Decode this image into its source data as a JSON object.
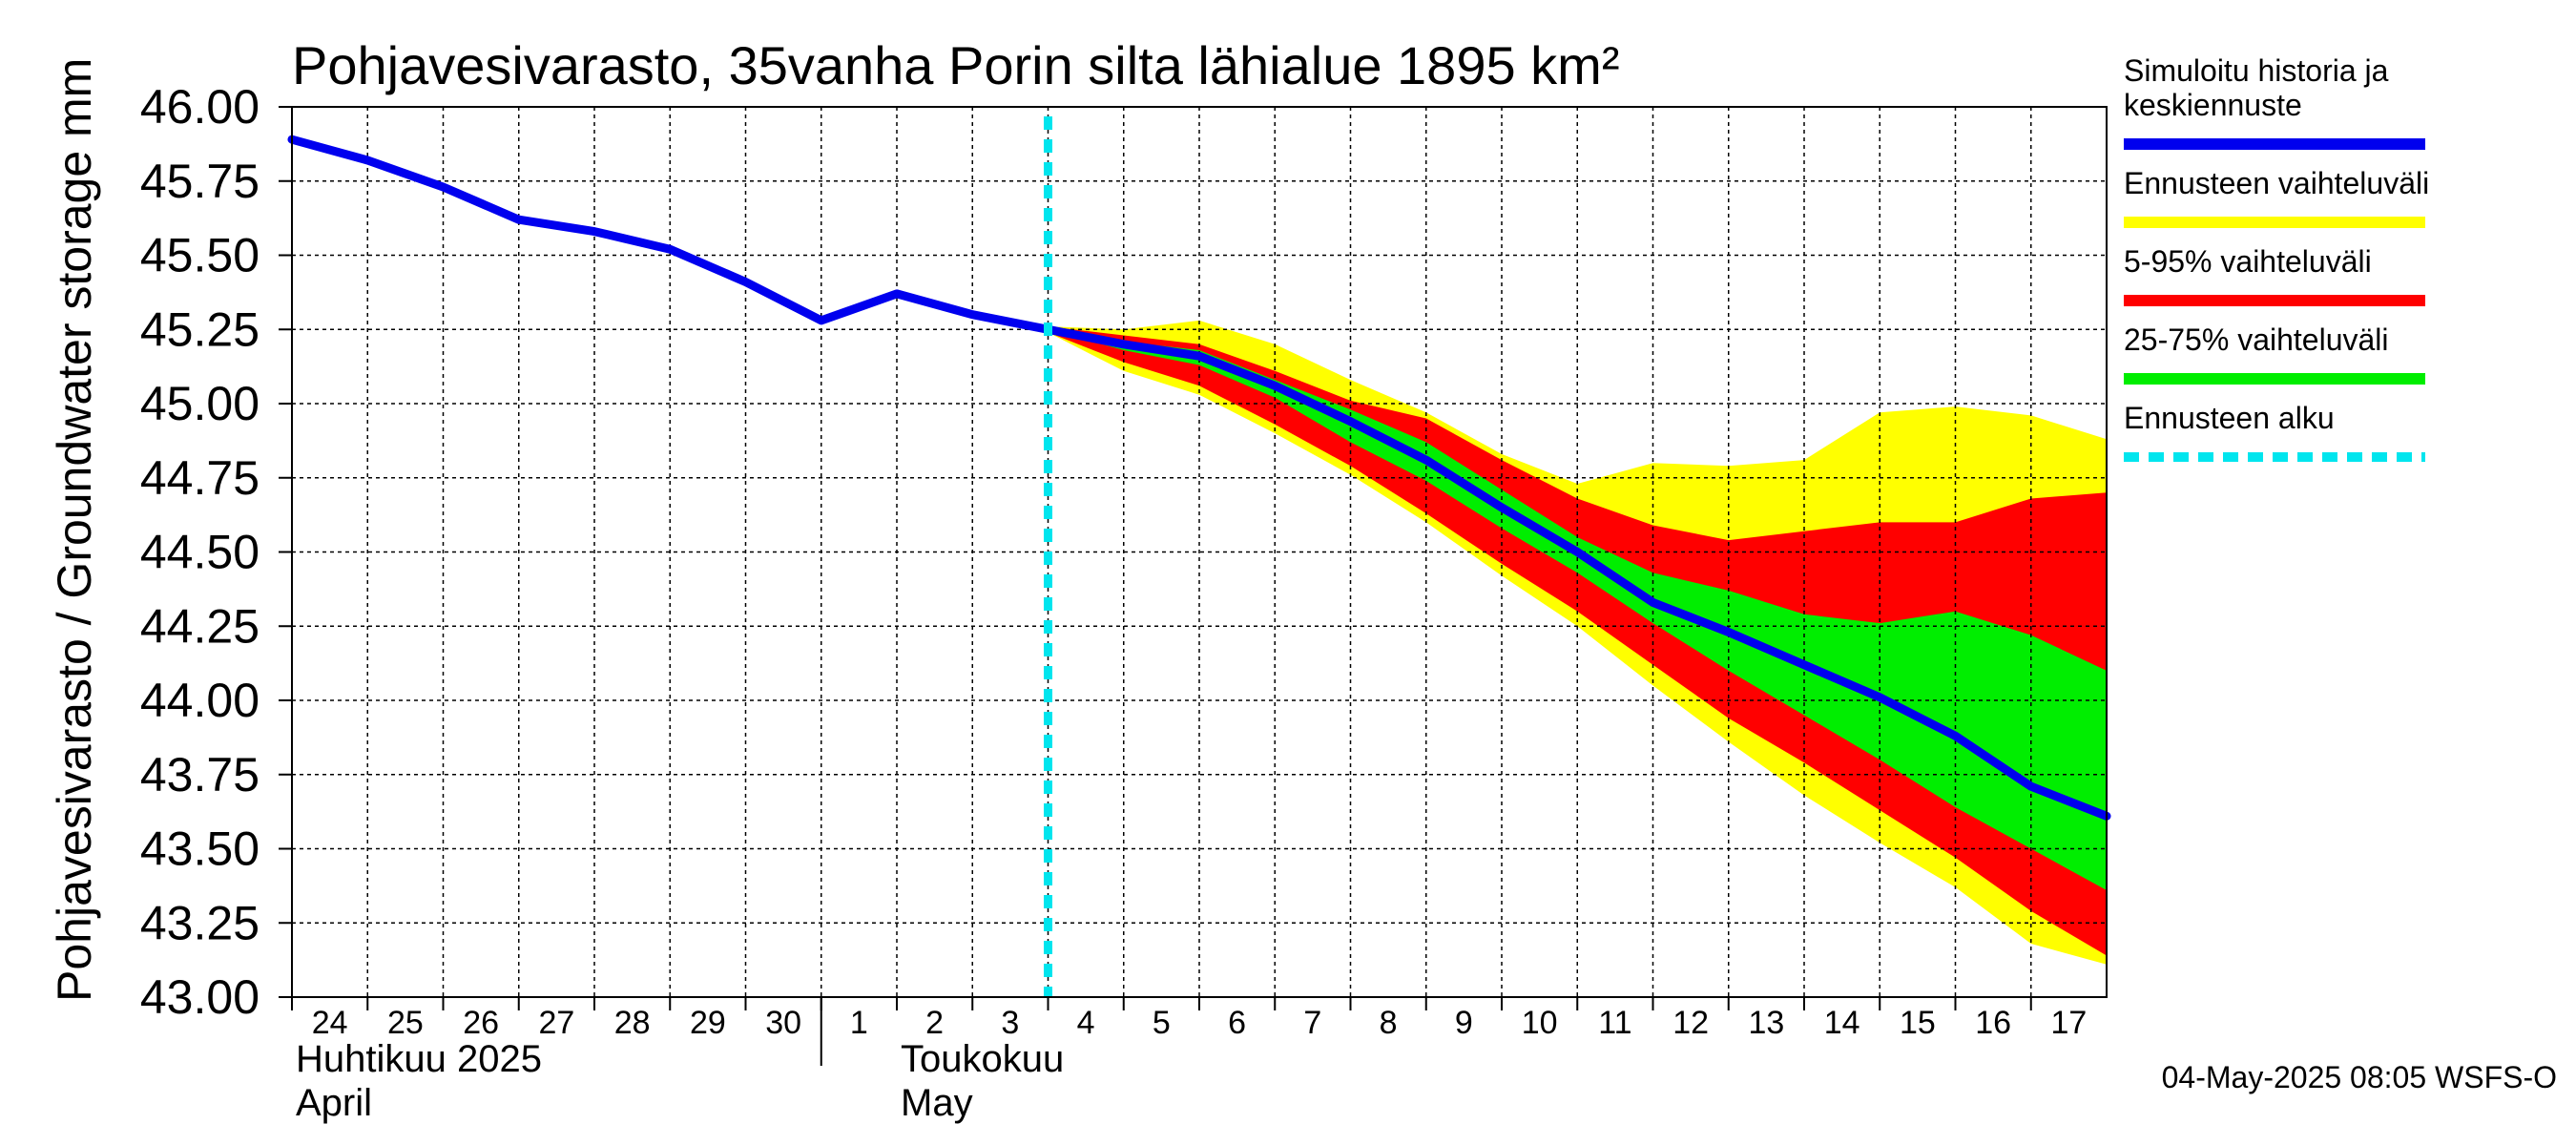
{
  "chart_data": {
    "type": "area",
    "title": "Pohjavesivarasto, 35vanha Porin silta lähialue 1895 km²",
    "ylabel": "Pohjavesivarasto / Groundwater storage   mm",
    "ylim": [
      43.0,
      46.0
    ],
    "y_ticks": [
      "46.00",
      "45.75",
      "45.50",
      "45.25",
      "45.00",
      "44.75",
      "44.50",
      "44.25",
      "44.00",
      "43.75",
      "43.50",
      "43.25",
      "43.00"
    ],
    "x_ticks": [
      "24",
      "25",
      "26",
      "27",
      "28",
      "29",
      "30",
      "1",
      "2",
      "3",
      "4",
      "5",
      "6",
      "7",
      "8",
      "9",
      "10",
      "11",
      "12",
      "13",
      "14",
      "15",
      "16",
      "17"
    ],
    "month_labels": [
      {
        "line1": "Huhtikuu  2025",
        "line2": "April"
      },
      {
        "line1": "Toukokuu",
        "line2": "May"
      }
    ],
    "grid": true,
    "legend_position": "right",
    "legend": [
      {
        "label_lines": [
          "Simuloitu historia ja",
          "keskiennuste"
        ],
        "color": "#0000ee",
        "style": "solid"
      },
      {
        "label_lines": [
          "Ennusteen vaihteluväli"
        ],
        "color": "#ffff00",
        "style": "solid"
      },
      {
        "label_lines": [
          "5-95% vaihteluväli"
        ],
        "color": "#ff0000",
        "style": "solid"
      },
      {
        "label_lines": [
          "25-75% vaihteluväli"
        ],
        "color": "#00ee00",
        "style": "solid"
      },
      {
        "label_lines": [
          "Ennusteen alku"
        ],
        "color": "#00e5ee",
        "style": "dashed"
      }
    ],
    "x_dates": [
      "2025-04-24",
      "2025-04-25",
      "2025-04-26",
      "2025-04-27",
      "2025-04-28",
      "2025-04-29",
      "2025-04-30",
      "2025-05-01",
      "2025-05-02",
      "2025-05-03",
      "2025-05-04",
      "2025-05-05",
      "2025-05-06",
      "2025-05-07",
      "2025-05-08",
      "2025-05-09",
      "2025-05-10",
      "2025-05-11",
      "2025-05-12",
      "2025-05-13",
      "2025-05-14",
      "2025-05-15",
      "2025-05-16",
      "2025-05-17",
      "2025-05-18"
    ],
    "forecast_start": "2025-05-04",
    "series": [
      {
        "name": "Simuloitu historia ja keskiennuste",
        "x": [
          "2025-04-24",
          "2025-04-25",
          "2025-04-26",
          "2025-04-27",
          "2025-04-28",
          "2025-04-29",
          "2025-04-30",
          "2025-05-01",
          "2025-05-02",
          "2025-05-03",
          "2025-05-04",
          "2025-05-05",
          "2025-05-06",
          "2025-05-07",
          "2025-05-08",
          "2025-05-09",
          "2025-05-10",
          "2025-05-11",
          "2025-05-12",
          "2025-05-13",
          "2025-05-14",
          "2025-05-15",
          "2025-05-16",
          "2025-05-17",
          "2025-05-18"
        ],
        "values": [
          45.89,
          45.82,
          45.73,
          45.62,
          45.58,
          45.52,
          45.41,
          45.28,
          45.37,
          45.3,
          45.25,
          45.2,
          45.16,
          45.06,
          44.94,
          44.81,
          44.65,
          44.5,
          44.33,
          44.23,
          44.12,
          44.01,
          43.88,
          43.71,
          43.61
        ]
      }
    ],
    "bands": [
      {
        "name": "Ennusteen vaihteluväli",
        "x": [
          "2025-05-04",
          "2025-05-05",
          "2025-05-06",
          "2025-05-07",
          "2025-05-08",
          "2025-05-09",
          "2025-05-10",
          "2025-05-11",
          "2025-05-12",
          "2025-05-13",
          "2025-05-14",
          "2025-05-15",
          "2025-05-16",
          "2025-05-17",
          "2025-05-18"
        ],
        "upper": [
          45.26,
          45.25,
          45.28,
          45.2,
          45.08,
          44.97,
          44.83,
          44.73,
          44.8,
          44.79,
          44.81,
          44.97,
          44.99,
          44.96,
          44.88
        ],
        "lower": [
          45.24,
          45.11,
          45.03,
          44.9,
          44.76,
          44.6,
          44.42,
          44.25,
          44.05,
          43.86,
          43.68,
          43.52,
          43.37,
          43.18,
          43.11
        ]
      },
      {
        "name": "5-95% vaihteluväli",
        "x": [
          "2025-05-04",
          "2025-05-05",
          "2025-05-06",
          "2025-05-07",
          "2025-05-08",
          "2025-05-09",
          "2025-05-10",
          "2025-05-11",
          "2025-05-12",
          "2025-05-13",
          "2025-05-14",
          "2025-05-15",
          "2025-05-16",
          "2025-05-17",
          "2025-05-18"
        ],
        "upper": [
          45.26,
          45.23,
          45.2,
          45.11,
          45.01,
          44.95,
          44.81,
          44.68,
          44.59,
          44.54,
          44.57,
          44.6,
          44.6,
          44.68,
          44.7
        ],
        "lower": [
          45.24,
          45.14,
          45.06,
          44.93,
          44.79,
          44.63,
          44.46,
          44.3,
          44.12,
          43.94,
          43.79,
          43.63,
          43.47,
          43.29,
          43.14
        ]
      },
      {
        "name": "25-75% vaihteluväli",
        "x": [
          "2025-05-04",
          "2025-05-05",
          "2025-05-06",
          "2025-05-07",
          "2025-05-08",
          "2025-05-09",
          "2025-05-10",
          "2025-05-11",
          "2025-05-12",
          "2025-05-13",
          "2025-05-14",
          "2025-05-15",
          "2025-05-16",
          "2025-05-17",
          "2025-05-18"
        ],
        "upper": [
          45.25,
          45.21,
          45.18,
          45.08,
          44.98,
          44.87,
          44.71,
          44.55,
          44.43,
          44.37,
          44.29,
          44.26,
          44.3,
          44.22,
          44.1
        ],
        "lower": [
          45.25,
          45.18,
          45.13,
          45.02,
          44.87,
          44.74,
          44.58,
          44.43,
          44.26,
          44.1,
          43.95,
          43.8,
          43.64,
          43.5,
          43.36
        ]
      }
    ]
  },
  "footer": "04-May-2025 08:05 WSFS-O"
}
